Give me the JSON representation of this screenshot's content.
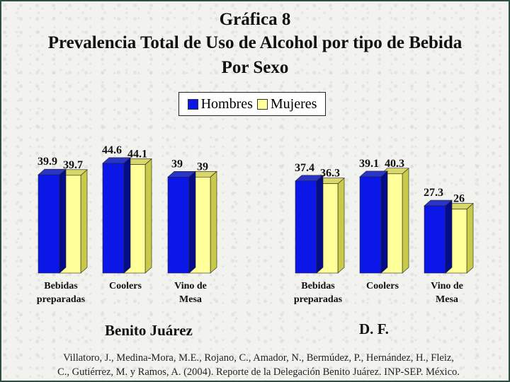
{
  "title": {
    "line1": "Gráfica 8",
    "line2": "Prevalencia Total de Uso de Alcohol por tipo de Bebida",
    "line3": "Por Sexo"
  },
  "legend": {
    "items": [
      {
        "label": "Hombres",
        "color": "#0a17e6"
      },
      {
        "label": "Mujeres",
        "color": "#ffff99"
      }
    ]
  },
  "citation": {
    "line1": "Villatoro, J., Medina-Mora, M.E., Rojano, C., Amador, N., Bermúdez, P., Hernández, H., Fleiz,",
    "line2": "C., Gutiérrez, M. y Ramos, A. (2004). Reporte de la Delegación Benito Juárez. INP-SEP. México."
  },
  "chart_data": [
    {
      "type": "bar",
      "title": "Benito Juárez",
      "categories": [
        "Bebidas preparadas",
        "Coolers",
        "Vino de Mesa"
      ],
      "category_lines": [
        [
          "Bebidas",
          "preparadas"
        ],
        [
          "Coolers"
        ],
        [
          "Vino de",
          "Mesa"
        ]
      ],
      "series": [
        {
          "name": "Hombres",
          "values": [
            39.9,
            44.6,
            39
          ],
          "labels": [
            "39.9",
            "44.6",
            "39"
          ]
        },
        {
          "name": "Mujeres",
          "values": [
            39.7,
            44.1,
            39
          ],
          "labels": [
            "39.7",
            "44.1",
            "39"
          ]
        }
      ]
    },
    {
      "type": "bar",
      "title": "D. F.",
      "categories": [
        "Bebidas preparadas",
        "Coolers",
        "Vino de Mesa"
      ],
      "category_lines": [
        [
          "Bebidas",
          "preparadas"
        ],
        [
          "Coolers"
        ],
        [
          "Vino de",
          "Mesa"
        ]
      ],
      "series": [
        {
          "name": "Hombres",
          "values": [
            37.4,
            39.1,
            27.3
          ],
          "labels": [
            "37.4",
            "39.1",
            "27.3"
          ]
        },
        {
          "name": "Mujeres",
          "values": [
            36.3,
            40.3,
            26
          ],
          "labels": [
            "36.3",
            "40.3",
            "26"
          ]
        }
      ]
    }
  ]
}
